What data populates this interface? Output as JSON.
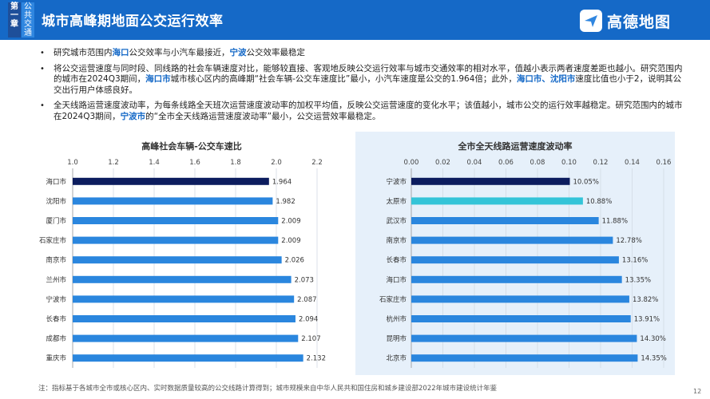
{
  "header": {
    "chapter_label": "第一章",
    "topic_label": "公共交通",
    "title": "城市高峰期地面公交运行效率",
    "logo_text": "高德地图"
  },
  "bullets": [
    {
      "parts": [
        {
          "t": "研究城市范围内",
          "hl": false
        },
        {
          "t": "海口",
          "hl": true
        },
        {
          "t": "公交效率与小汽车最接近，",
          "hl": false
        },
        {
          "t": "宁波",
          "hl": true
        },
        {
          "t": "公交效率最稳定",
          "hl": false
        }
      ]
    },
    {
      "parts": [
        {
          "t": "将公交运营速度与同时段、同线路的社会车辆速度对比，能够较直接、客观地反映公交运行效率与城市交通效率的相对水平，值越小表示两者速度差距也越小。研究范围内的城市在2024Q3期间，",
          "hl": false
        },
        {
          "t": "海口市",
          "hl": true
        },
        {
          "t": "城市核心区内的高峰期“社会车辆-公交车速度比”最小，小汽车速度是公交的1.964倍；此外，",
          "hl": false
        },
        {
          "t": "海口市、沈阳市",
          "hl": true
        },
        {
          "t": "速度比值也小于2，说明其公交出行用户体感良好。",
          "hl": false
        }
      ]
    },
    {
      "parts": [
        {
          "t": "全天线路运营速度波动率，为每条线路全天班次运营速度波动率的加权平均值，反映公交运营速度的变化水平；该值越小，城市公交的运行效率越稳定。研究范围内的城市在2024Q3期间，",
          "hl": false
        },
        {
          "t": "宁波市",
          "hl": true
        },
        {
          "t": "的“全市全天线路运营速度波动率”最小，公交运营效率最稳定。",
          "hl": false
        }
      ]
    }
  ],
  "chart_data": [
    {
      "type": "bar",
      "orientation": "horizontal",
      "title": "高峰社会车辆-公交车速比",
      "categories": [
        "海口市",
        "沈阳市",
        "厦门市",
        "石家庄市",
        "南京市",
        "兰州市",
        "宁波市",
        "长春市",
        "成都市",
        "重庆市"
      ],
      "values": [
        1.964,
        1.982,
        2.009,
        2.009,
        2.026,
        2.073,
        2.087,
        2.094,
        2.107,
        2.132
      ],
      "value_labels": [
        "1.964",
        "1.982",
        "2.009",
        "2.009",
        "2.026",
        "2.073",
        "2.087",
        "2.094",
        "2.107",
        "2.132"
      ],
      "xlim": [
        1.0,
        2.2
      ],
      "ticks": [
        "1.0",
        "1.2",
        "1.4",
        "1.6",
        "1.8",
        "2.0",
        "2.2"
      ],
      "tick_values": [
        1.0,
        1.2,
        1.4,
        1.6,
        1.8,
        2.0,
        2.2
      ],
      "axis_position": "top",
      "grid": true,
      "bar_color": "#2a86de",
      "highlight_color": "#0c1c5e",
      "highlight_index": 0
    },
    {
      "type": "bar",
      "orientation": "horizontal",
      "title": "全市全天线路运营速度波动率",
      "categories": [
        "宁波市",
        "太原市",
        "武汉市",
        "南京市",
        "长春市",
        "海口市",
        "石家庄市",
        "杭州市",
        "昆明市",
        "北京市"
      ],
      "values": [
        0.1005,
        0.1088,
        0.1188,
        0.1278,
        0.1316,
        0.1335,
        0.1382,
        0.1391,
        0.143,
        0.1435
      ],
      "value_labels": [
        "10.05%",
        "10.88%",
        "11.88%",
        "12.78%",
        "13.16%",
        "13.35%",
        "13.82%",
        "13.91%",
        "14.30%",
        "14.35%"
      ],
      "xlim": [
        0,
        0.16
      ],
      "ticks": [
        "0.00",
        "0.02",
        "0.04",
        "0.06",
        "0.08",
        "0.10",
        "0.12",
        "0.14",
        "0.16"
      ],
      "tick_values": [
        0,
        0.02,
        0.04,
        0.06,
        0.08,
        0.1,
        0.12,
        0.14,
        0.16
      ],
      "axis_position": "top",
      "grid": true,
      "bar_color": "#2a86de",
      "highlight_color": "#0c1c5e",
      "highlight_index": 0,
      "secondary_color": "#34c4d8",
      "secondary_index": 1
    }
  ],
  "footnote": "注：指标基于各城市全市或核心区内、实时数据质量较高的公交线路计算得到；城市规模来自中华人民共和国住房和城乡建设部2022年城市建设统计年鉴",
  "page_number": "12"
}
